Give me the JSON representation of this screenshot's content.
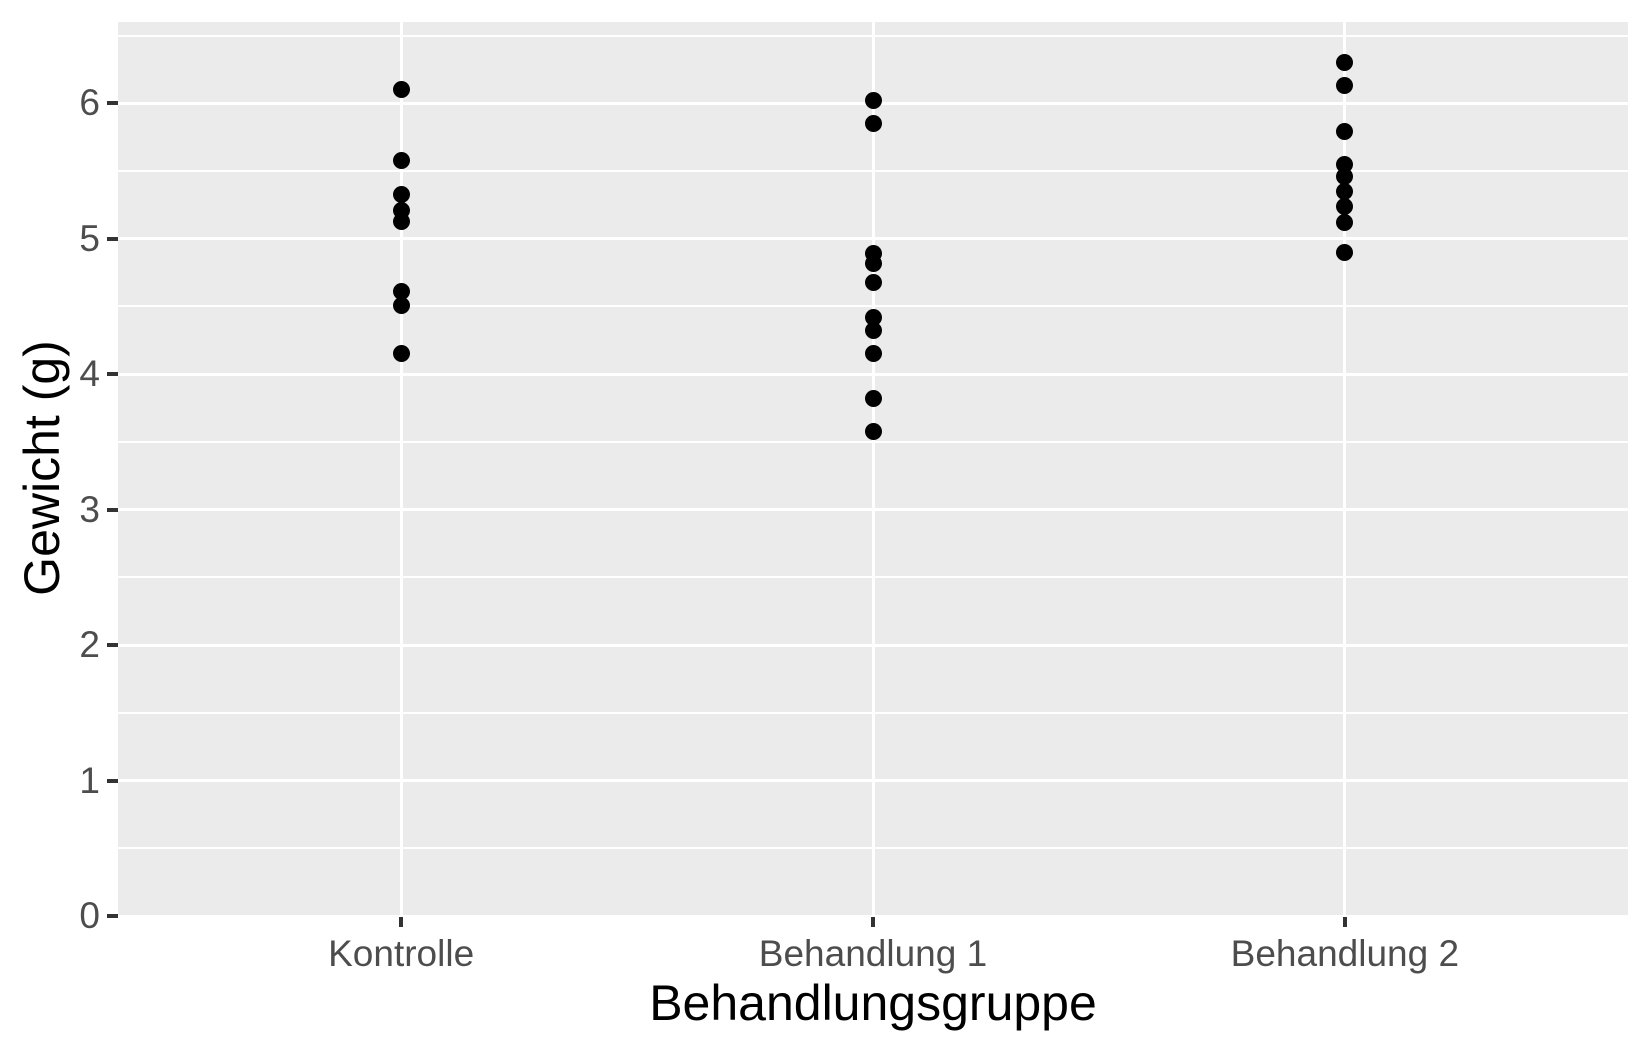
{
  "chart_data": {
    "type": "scatter",
    "variant": "strip-plot",
    "title": "",
    "xlabel": "Behandlungsgruppe",
    "ylabel": "Gewicht (g)",
    "categories": [
      "Kontrolle",
      "Behandlung 1",
      "Behandlung 2"
    ],
    "series": [
      {
        "name": "Kontrolle",
        "values": [
          6.1,
          5.58,
          5.33,
          5.21,
          5.13,
          4.61,
          4.51,
          4.15
        ]
      },
      {
        "name": "Behandlung 1",
        "values": [
          6.02,
          5.85,
          4.89,
          4.82,
          4.68,
          4.42,
          4.32,
          4.15,
          3.82,
          3.58
        ]
      },
      {
        "name": "Behandlung 2",
        "values": [
          6.3,
          6.13,
          5.79,
          5.55,
          5.46,
          5.35,
          5.24,
          5.12,
          4.9
        ]
      }
    ],
    "ylim": [
      0,
      6.6
    ],
    "y_major_ticks": [
      0,
      1,
      2,
      3,
      4,
      5,
      6
    ],
    "y_minor_ticks": [
      0.5,
      1.5,
      2.5,
      3.5,
      4.5,
      5.5,
      6.5
    ],
    "grid": true,
    "legend": false,
    "colors": {
      "panel_background": "#EBEBEB",
      "gridline": "#FFFFFF",
      "point": "#000000",
      "tick_mark": "#333333",
      "tick_label": "#4D4D4D",
      "axis_title": "#000000",
      "figure_background": "#FFFFFF"
    }
  }
}
